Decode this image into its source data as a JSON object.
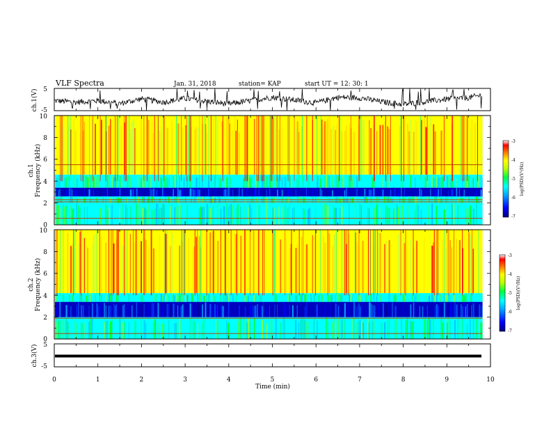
{
  "header": {
    "title": "VLF Spectra",
    "date": "Jan. 31, 2018",
    "station": "station= KAP",
    "start": "start  UT =   12: 30: 1"
  },
  "colors": {
    "spectrogram_scale": [
      "#0000a0",
      "#0000ff",
      "#0080ff",
      "#00ffff",
      "#00ff80",
      "#80ff00",
      "#ffff00",
      "#ff8000",
      "#ff0000",
      "#ffffff"
    ],
    "waveform": "#000000"
  },
  "chart_data": [
    {
      "type": "line",
      "name": "waveform-ch1",
      "ylabel": "ch.1(V)",
      "ylim": [
        -5,
        5
      ],
      "yticks": [
        "5",
        "-5"
      ],
      "xlim": [
        0,
        10
      ],
      "description_values": "noisy waveform around 0 V with amplitude about ±2 V, peaks near ±4.5 V",
      "t_minutes": [
        0,
        0.5,
        1,
        1.5,
        2,
        2.5,
        3,
        3.5,
        4,
        4.5,
        5,
        5.5,
        6,
        6.5,
        7,
        7.5,
        8,
        8.5,
        9,
        9.5,
        9.8
      ],
      "v": [
        -0.5,
        -1.2,
        -0.5,
        -1.8,
        0.3,
        -1.2,
        0.5,
        -0.8,
        -2.0,
        -0.5,
        1.0,
        -0.2,
        -1.5,
        1.0,
        0.8,
        -1.0,
        -2.2,
        -1.0,
        0.2,
        0.8,
        2.0
      ]
    },
    {
      "type": "heatmap",
      "name": "spectrogram-ch1",
      "ylabel": "ch.1\nFrequency  (kHz)",
      "ylim": [
        0,
        10
      ],
      "yticks": [
        "0",
        "2",
        "4",
        "6",
        "8",
        "10"
      ],
      "xlim": [
        0,
        10
      ],
      "colorbar": {
        "label": "log(PSD)(V²/Hz)",
        "ticks": [
          "-3",
          "-4",
          "-5",
          "-6",
          "-7"
        ],
        "range": [
          -7,
          -3
        ]
      },
      "bands_khz": [
        {
          "from": 0,
          "to": 2.0,
          "level": "cyan-green"
        },
        {
          "from": 2.0,
          "to": 2.6,
          "level": "cyan-green"
        },
        {
          "from": 2.6,
          "to": 3.4,
          "level": "blue"
        },
        {
          "from": 3.4,
          "to": 4.6,
          "level": "cyan-green"
        },
        {
          "from": 4.6,
          "to": 10,
          "level": "yellow-red"
        }
      ],
      "lines_khz": [
        5.5,
        2.3,
        2.1,
        0.6
      ]
    },
    {
      "type": "heatmap",
      "name": "spectrogram-ch2",
      "ylabel": "ch.2\nFrequency  (kHz)",
      "ylim": [
        0,
        10
      ],
      "yticks": [
        "0",
        "2",
        "4",
        "6",
        "8",
        "10"
      ],
      "xlim": [
        0,
        10
      ],
      "colorbar": {
        "label": "log(PSD)(V²/Hz)",
        "ticks": [
          "-3",
          "-4",
          "-5",
          "-6",
          "-7"
        ],
        "range": [
          -7,
          -3
        ]
      },
      "bands_khz": [
        {
          "from": 0,
          "to": 2.0,
          "level": "cyan-green"
        },
        {
          "from": 2.0,
          "to": 3.4,
          "level": "blue"
        },
        {
          "from": 3.4,
          "to": 4.2,
          "level": "cyan-green"
        },
        {
          "from": 4.2,
          "to": 10,
          "level": "yellow-red"
        }
      ],
      "lines_khz": [
        1.9,
        0.5
      ]
    },
    {
      "type": "line",
      "name": "waveform-ch3",
      "ylabel": "ch.3(V)",
      "ylim": [
        -5,
        5
      ],
      "yticks": [
        "5",
        "-5"
      ],
      "xlim": [
        0,
        10
      ],
      "t_minutes": [
        0,
        9.8
      ],
      "v": [
        0,
        0
      ]
    }
  ],
  "xaxis": {
    "label": "Time  (min)",
    "ticks": [
      "0",
      "1",
      "2",
      "3",
      "4",
      "5",
      "6",
      "7",
      "8",
      "9",
      "10"
    ]
  }
}
